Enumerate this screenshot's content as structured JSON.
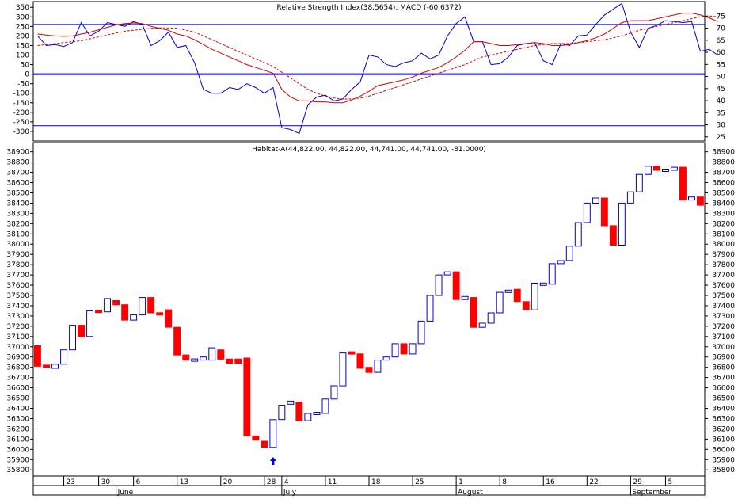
{
  "chart_data": [
    {
      "type": "line",
      "title": "Relative Strength Index(38.5654), MACD (-60.6372)",
      "left_axis": {
        "range": [
          -350,
          380
        ],
        "ticks": [
          350,
          300,
          250,
          200,
          150,
          100,
          50,
          0,
          -50,
          -100,
          -150,
          -200,
          -250,
          -300
        ]
      },
      "right_axis": {
        "range": [
          23.3,
          81.0
        ],
        "ticks": [
          75,
          70,
          65,
          60,
          55,
          50,
          45,
          40,
          35,
          30,
          25
        ]
      },
      "reference_lines_left_axis": [
        260,
        0,
        -270
      ],
      "series": [
        {
          "color": "#0000cc",
          "style": "solid",
          "axis": "left",
          "values": [
            200,
            150,
            155,
            145,
            165,
            270,
            200,
            225,
            270,
            260,
            250,
            275,
            260,
            150,
            175,
            220,
            140,
            150,
            60,
            -80,
            -100,
            -100,
            -70,
            -80,
            -50,
            -70,
            -100,
            -70,
            -280,
            -290,
            -310,
            -160,
            -120,
            -110,
            -140,
            -130,
            -80,
            -40,
            100,
            90,
            50,
            40,
            60,
            70,
            110,
            80,
            100,
            200,
            265,
            300,
            170,
            170,
            50,
            55,
            90,
            150,
            160,
            165,
            70,
            50,
            160,
            150,
            200,
            205,
            260,
            310,
            340,
            370,
            220,
            140,
            240,
            255,
            280,
            275,
            270,
            275,
            120,
            130,
            100
          ]
        },
        {
          "color": "#dd0000",
          "style": "solid",
          "axis": "left",
          "values": [
            210,
            205,
            200,
            198,
            200,
            210,
            220,
            232,
            245,
            258,
            265,
            268,
            265,
            250,
            240,
            230,
            210,
            200,
            180,
            155,
            130,
            110,
            90,
            70,
            50,
            35,
            20,
            5,
            -80,
            -120,
            -140,
            -140,
            -145,
            -145,
            -150,
            -150,
            -135,
            -115,
            -90,
            -60,
            -50,
            -40,
            -30,
            -15,
            5,
            20,
            35,
            60,
            90,
            125,
            170,
            170,
            160,
            150,
            150,
            155,
            160,
            165,
            160,
            150,
            150,
            155,
            165,
            175,
            190,
            210,
            240,
            270,
            280,
            280,
            280,
            290,
            300,
            310,
            320,
            320,
            310,
            295,
            275
          ]
        },
        {
          "color": "#dd0000",
          "style": "dashed",
          "axis": "left",
          "values": [
            150,
            155,
            160,
            165,
            170,
            175,
            185,
            195,
            205,
            215,
            225,
            230,
            235,
            240,
            242,
            242,
            240,
            230,
            220,
            200,
            180,
            160,
            140,
            120,
            100,
            80,
            60,
            40,
            10,
            -20,
            -50,
            -80,
            -100,
            -115,
            -125,
            -130,
            -130,
            -125,
            -115,
            -100,
            -85,
            -70,
            -55,
            -40,
            -25,
            -10,
            5,
            20,
            35,
            50,
            70,
            90,
            100,
            110,
            120,
            130,
            140,
            150,
            155,
            160,
            160,
            160,
            165,
            170,
            175,
            180,
            190,
            200,
            215,
            230,
            240,
            250,
            260,
            270,
            280,
            290,
            300,
            305,
            300
          ]
        }
      ]
    },
    {
      "type": "candlestick",
      "title": "Habitat-A(44,822.00, 44,822.00, 44,741.00, 44,741.00, -81.0000)",
      "ylim": [
        35740,
        38990
      ],
      "y_ticks": [
        38900,
        38800,
        38700,
        38600,
        38500,
        38400,
        38300,
        38200,
        38100,
        38000,
        37900,
        37800,
        37700,
        37600,
        37500,
        37400,
        37300,
        37200,
        37100,
        37000,
        36900,
        36800,
        36700,
        36600,
        36500,
        36400,
        36300,
        36200,
        36100,
        36000,
        35900,
        35800
      ],
      "up_color": "#ffffff",
      "up_edge_color": "#0000cc",
      "down_color": "#ff0000",
      "candles": [
        [
          37010,
          36810
        ],
        [
          36820,
          36800
        ],
        [
          36790,
          36830
        ],
        [
          36830,
          36970
        ],
        [
          36970,
          37210
        ],
        [
          37210,
          37100
        ],
        [
          37100,
          37350
        ],
        [
          37350,
          37340
        ],
        [
          37340,
          37470
        ],
        [
          37450,
          37410
        ],
        [
          37410,
          37260
        ],
        [
          37260,
          37310
        ],
        [
          37310,
          37480
        ],
        [
          37480,
          37330
        ],
        [
          37330,
          37310
        ],
        [
          37360,
          37190
        ],
        [
          37190,
          36920
        ],
        [
          36920,
          36870
        ],
        [
          36870,
          36870
        ],
        [
          36870,
          36900
        ],
        [
          36870,
          36990
        ],
        [
          36970,
          36880
        ],
        [
          36880,
          36840
        ],
        [
          36880,
          36840
        ],
        [
          36890,
          36130
        ],
        [
          36130,
          36090
        ],
        [
          36080,
          36020
        ],
        [
          36020,
          36290
        ],
        [
          36290,
          36430
        ],
        [
          36440,
          36470
        ],
        [
          36460,
          36280
        ],
        [
          36280,
          36350
        ],
        [
          36350,
          36350
        ],
        [
          36350,
          36490
        ],
        [
          36490,
          36620
        ],
        [
          36620,
          36940
        ],
        [
          36950,
          36930
        ],
        [
          36930,
          36790
        ],
        [
          36800,
          36750
        ],
        [
          36750,
          36870
        ],
        [
          36870,
          36900
        ],
        [
          36900,
          37030
        ],
        [
          37030,
          36930
        ],
        [
          36930,
          37030
        ],
        [
          37030,
          37250
        ],
        [
          37250,
          37500
        ],
        [
          37500,
          37700
        ],
        [
          37700,
          37730
        ],
        [
          37730,
          37460
        ],
        [
          37460,
          37490
        ],
        [
          37480,
          37190
        ],
        [
          37190,
          37230
        ],
        [
          37230,
          37330
        ],
        [
          37330,
          37530
        ],
        [
          37530,
          37550
        ],
        [
          37560,
          37440
        ],
        [
          37440,
          37360
        ],
        [
          37360,
          37620
        ],
        [
          37610,
          37610
        ],
        [
          37610,
          37810
        ],
        [
          37810,
          37840
        ],
        [
          37840,
          37980
        ],
        [
          37980,
          38210
        ],
        [
          38210,
          38400
        ],
        [
          38400,
          38450
        ],
        [
          38450,
          38180
        ],
        [
          38180,
          37990
        ],
        [
          37990,
          38400
        ],
        [
          38400,
          38510
        ],
        [
          38510,
          38680
        ],
        [
          38680,
          38760
        ],
        [
          38760,
          38720
        ],
        [
          38720,
          38720
        ],
        [
          38720,
          38750
        ],
        [
          38750,
          38430
        ],
        [
          38430,
          38460
        ],
        [
          38460,
          38380
        ]
      ],
      "markers": [
        {
          "index": 27,
          "symbol": "up-arrow",
          "color": "#0000cc"
        }
      ]
    }
  ],
  "x_axis": {
    "day_labels": [
      {
        "index": 3,
        "label": "23"
      },
      {
        "index": 7,
        "label": "30"
      },
      {
        "index": 11,
        "label": "6"
      },
      {
        "index": 16,
        "label": "13"
      },
      {
        "index": 21,
        "label": "20"
      },
      {
        "index": 26,
        "label": "28"
      },
      {
        "index": 28,
        "label": "4"
      },
      {
        "index": 33,
        "label": "11"
      },
      {
        "index": 38,
        "label": "18"
      },
      {
        "index": 43,
        "label": "25"
      },
      {
        "index": 48,
        "label": "1"
      },
      {
        "index": 53,
        "label": "8"
      },
      {
        "index": 58,
        "label": "16"
      },
      {
        "index": 63,
        "label": "22"
      },
      {
        "index": 68,
        "label": "29"
      },
      {
        "index": 72,
        "label": "5"
      }
    ],
    "month_labels": [
      {
        "index": 9,
        "label": "June"
      },
      {
        "index": 28,
        "label": "July"
      },
      {
        "index": 48,
        "label": "August"
      },
      {
        "index": 68,
        "label": "September"
      }
    ]
  }
}
